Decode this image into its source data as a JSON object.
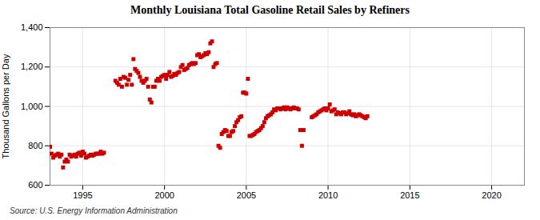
{
  "chart_data": {
    "type": "scatter",
    "title": "Monthly Louisiana Total Gasoline Retail Sales by Refiners",
    "ylabel": "Thousand Gallons per Day",
    "caption": "Source: U.S. Energy Information Administration",
    "color": "#cc0000",
    "marker": "square",
    "grid": true,
    "xlim": [
      1993,
      2022
    ],
    "ylim": [
      600,
      1400
    ],
    "xticks": [
      1995,
      2000,
      2005,
      2010,
      2015,
      2020
    ],
    "yticks": [
      600,
      800,
      {
        "value": 1000,
        "label": "1,000"
      },
      {
        "value": 1200,
        "label": "1,200"
      },
      {
        "value": 1400,
        "label": "1,400"
      }
    ],
    "x": [
      1993.0,
      1993.1,
      1993.2,
      1993.3,
      1993.4,
      1993.5,
      1993.6,
      1993.7,
      1993.8,
      1993.9,
      1994.0,
      1994.1,
      1994.2,
      1994.3,
      1994.4,
      1994.5,
      1994.6,
      1994.7,
      1994.8,
      1994.9,
      1995.0,
      1995.1,
      1995.2,
      1995.3,
      1995.4,
      1995.5,
      1995.6,
      1995.7,
      1995.8,
      1995.9,
      1996.0,
      1996.1,
      1996.2,
      1996.3,
      1997.0,
      1997.1,
      1997.2,
      1997.3,
      1997.4,
      1997.5,
      1997.6,
      1997.7,
      1997.8,
      1997.9,
      1998.0,
      1998.1,
      1998.2,
      1998.3,
      1998.4,
      1998.5,
      1998.6,
      1998.7,
      1998.8,
      1998.9,
      1999.0,
      1999.1,
      1999.2,
      1999.3,
      1999.4,
      1999.5,
      1999.6,
      1999.7,
      1999.8,
      1999.9,
      2000.0,
      2000.1,
      2000.2,
      2000.3,
      2000.4,
      2000.5,
      2000.6,
      2000.7,
      2000.8,
      2000.9,
      2001.0,
      2001.1,
      2001.2,
      2001.3,
      2001.4,
      2001.5,
      2001.6,
      2001.7,
      2001.8,
      2001.9,
      2002.0,
      2002.1,
      2002.2,
      2002.3,
      2002.4,
      2002.5,
      2002.6,
      2002.7,
      2002.8,
      2002.9,
      2003.0,
      2003.1,
      2003.2,
      2003.3,
      2003.4,
      2003.5,
      2003.6,
      2003.7,
      2003.8,
      2003.9,
      2004.0,
      2004.1,
      2004.2,
      2004.3,
      2004.4,
      2004.5,
      2004.6,
      2004.7,
      2004.8,
      2004.9,
      2005.0,
      2005.1,
      2005.2,
      2005.3,
      2005.4,
      2005.5,
      2005.6,
      2005.7,
      2005.8,
      2005.9,
      2006.0,
      2006.1,
      2006.2,
      2006.3,
      2006.4,
      2006.5,
      2006.6,
      2006.7,
      2006.8,
      2006.9,
      2007.0,
      2007.1,
      2007.2,
      2007.3,
      2007.4,
      2007.5,
      2007.6,
      2007.7,
      2007.8,
      2007.9,
      2008.0,
      2008.1,
      2008.2,
      2008.3,
      2008.4,
      2008.5,
      2009.0,
      2009.1,
      2009.2,
      2009.3,
      2009.4,
      2009.5,
      2009.6,
      2009.7,
      2009.8,
      2009.9,
      2010.0,
      2010.1,
      2010.2,
      2010.3,
      2010.4,
      2010.5,
      2010.6,
      2010.7,
      2010.8,
      2010.9,
      2011.0,
      2011.1,
      2011.2,
      2011.3,
      2011.4,
      2011.5,
      2011.6,
      2011.7,
      2011.8,
      2011.9,
      2012.0,
      2012.1,
      2012.2,
      2012.3,
      2012.4
    ],
    "values": [
      795,
      760,
      740,
      750,
      755,
      760,
      745,
      755,
      690,
      720,
      730,
      720,
      755,
      745,
      750,
      755,
      745,
      760,
      765,
      750,
      770,
      760,
      740,
      745,
      750,
      755,
      750,
      755,
      760,
      760,
      760,
      770,
      760,
      765,
      1130,
      1120,
      1110,
      1140,
      1100,
      1150,
      1145,
      1110,
      1135,
      1160,
      1110,
      1240,
      1190,
      1180,
      1170,
      1150,
      1130,
      1120,
      1130,
      1140,
      1100,
      1035,
      1020,
      1100,
      1100,
      1130,
      1140,
      1130,
      1150,
      1155,
      1160,
      1140,
      1160,
      1175,
      1150,
      1155,
      1165,
      1160,
      1170,
      1175,
      1200,
      1210,
      1185,
      1190,
      1195,
      1210,
      1215,
      1220,
      1215,
      1220,
      1260,
      1265,
      1250,
      1255,
      1260,
      1270,
      1265,
      1275,
      1320,
      1330,
      1200,
      1215,
      1220,
      800,
      790,
      860,
      870,
      880,
      875,
      850,
      850,
      870,
      875,
      900,
      920,
      930,
      945,
      950,
      1070,
      1070,
      1065,
      1140,
      850,
      850,
      855,
      860,
      870,
      875,
      880,
      890,
      900,
      920,
      940,
      950,
      955,
      960,
      970,
      985,
      980,
      990,
      990,
      985,
      990,
      995,
      985,
      995,
      990,
      985,
      990,
      995,
      990,
      990,
      985,
      880,
      800,
      880,
      945,
      950,
      955,
      960,
      970,
      975,
      980,
      985,
      990,
      980,
      990,
      1010,
      975,
      980,
      985,
      960,
      970,
      965,
      960,
      970,
      970,
      960,
      965,
      975,
      960,
      955,
      960,
      950,
      955,
      960,
      955,
      950,
      945,
      940,
      950
    ]
  }
}
